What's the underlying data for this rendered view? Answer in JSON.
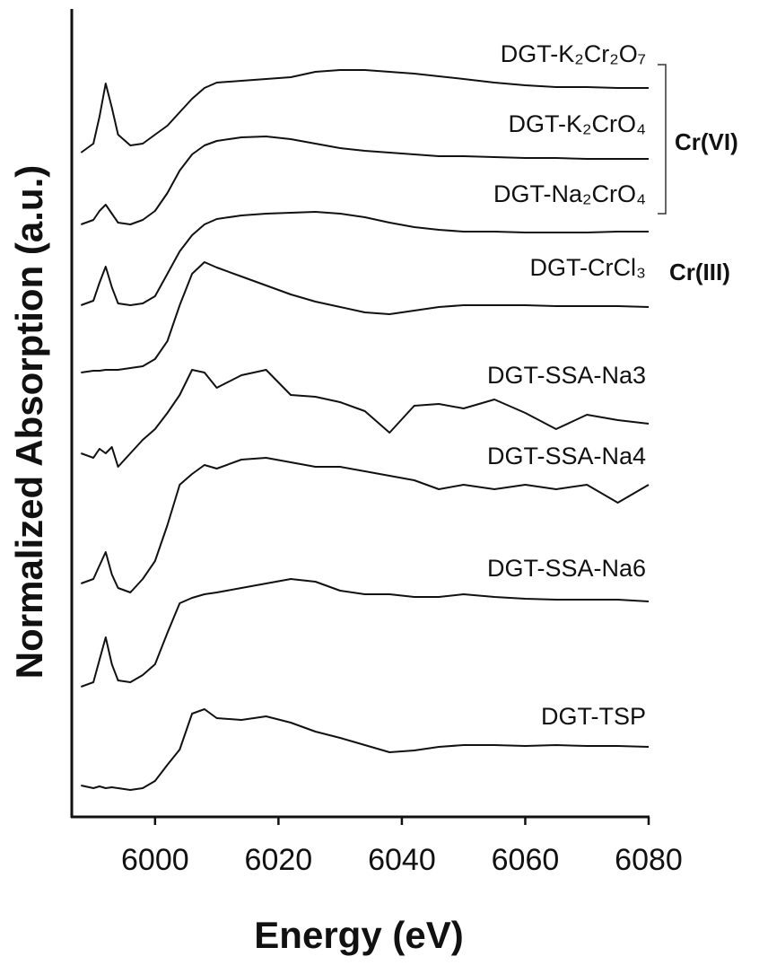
{
  "chart_data": {
    "type": "line",
    "x_label": "Energy (eV)",
    "y_label": "Normalized Absorption (a.u.)",
    "xlim": [
      5986.5,
      6080
    ],
    "xticks": [
      6000,
      6020,
      6040,
      6060,
      6080
    ],
    "ylim": [
      0,
      90
    ],
    "grid": false,
    "annotations": [
      "Cr(VI)",
      "Cr(III)"
    ],
    "x": [
      5988,
      5990,
      5991,
      5992,
      5993,
      5994,
      5996,
      5998,
      6000,
      6002,
      6004,
      6006,
      6008,
      6010,
      6014,
      6018,
      6022,
      6026,
      6030,
      6034,
      6038,
      6042,
      6046,
      6050,
      6055,
      6060,
      6065,
      6070,
      6075,
      6080
    ],
    "series": [
      {
        "name": "DGT-K₂Cr₂O₇",
        "color": "#111111",
        "values": [
          74,
          75,
          78,
          81.7,
          79,
          76,
          74.8,
          75,
          76,
          77,
          78.5,
          80,
          81.2,
          81.8,
          82,
          82.2,
          82.4,
          83,
          83.2,
          83.2,
          83,
          82.8,
          82.5,
          82.2,
          81.8,
          81.5,
          81.3,
          81.3,
          81.2,
          81.2
        ]
      },
      {
        "name": "DGT-K₂CrO₄",
        "color": "#111111",
        "values": [
          66,
          66.5,
          67.5,
          68.2,
          67.2,
          66.2,
          66,
          66.5,
          67.5,
          69.5,
          72,
          73.8,
          74.8,
          75.3,
          75.7,
          75.8,
          75.5,
          75,
          74.5,
          74.2,
          74,
          73.8,
          73.6,
          73.6,
          73.5,
          73.4,
          73.4,
          73.3,
          73.3,
          73.3
        ]
      },
      {
        "name": "DGT-Na₂CrO₄",
        "color": "#111111",
        "values": [
          57,
          57.5,
          59.5,
          61.3,
          59,
          57.2,
          57,
          57.2,
          58,
          60.5,
          63,
          64.8,
          66,
          66.6,
          67,
          67.2,
          67.3,
          67.4,
          67.2,
          66.8,
          66.2,
          65.7,
          65.4,
          65.2,
          65.2,
          65.1,
          65.1,
          65.1,
          65.2,
          65.2
        ]
      },
      {
        "name": "DGT-CrCl₃",
        "color": "#111111",
        "values": [
          49.5,
          49.7,
          49.7,
          49.8,
          49.8,
          49.8,
          50,
          50.2,
          51,
          53,
          57,
          60.5,
          61.8,
          61.2,
          60.2,
          59.2,
          58.2,
          57.4,
          56.8,
          56.2,
          56,
          56.4,
          56.8,
          57,
          57,
          57,
          56.9,
          56.9,
          56.9,
          56.8
        ]
      },
      {
        "name": "DGT-SSA-Na3",
        "color": "#111111",
        "values": [
          40.5,
          40,
          41,
          40.5,
          41.2,
          39,
          40.5,
          42,
          43.2,
          45,
          47,
          49.8,
          49.5,
          47.8,
          49.2,
          49.8,
          47,
          46.8,
          46.2,
          45.2,
          42.8,
          45.8,
          46,
          45.5,
          46.5,
          45,
          43.2,
          44.8,
          44.2,
          43.8
        ]
      },
      {
        "name": "DGT-SSA-Na4",
        "color": "#111111",
        "values": [
          26,
          26.5,
          28,
          29.5,
          27,
          25.5,
          25,
          26.5,
          28.5,
          32.5,
          37,
          38.2,
          39.2,
          38.8,
          39.8,
          40,
          39.5,
          39,
          39,
          38.5,
          38,
          37.5,
          36.5,
          37,
          36.5,
          37,
          36.5,
          37,
          35,
          37
        ]
      },
      {
        "name": "DGT-SSA-Na6",
        "color": "#111111",
        "values": [
          14.5,
          15,
          17.5,
          20,
          17,
          15.2,
          15,
          15.8,
          17,
          20.5,
          23.8,
          24.4,
          24.8,
          25,
          25.5,
          26,
          26.5,
          26.2,
          25.2,
          24.8,
          24.8,
          24.5,
          24.5,
          24.8,
          24.5,
          24.3,
          24.2,
          24.2,
          24.2,
          24
        ]
      },
      {
        "name": "DGT-TSP",
        "color": "#111111",
        "values": [
          3.5,
          3.2,
          3.4,
          3.2,
          3.3,
          3.2,
          3,
          3.2,
          4,
          5.8,
          7.5,
          11.5,
          12,
          11,
          10.8,
          11.2,
          10.5,
          9.5,
          8.8,
          8,
          7.2,
          7.4,
          7.8,
          8,
          8,
          7.9,
          8,
          7.9,
          7.9,
          7.8
        ]
      }
    ]
  }
}
